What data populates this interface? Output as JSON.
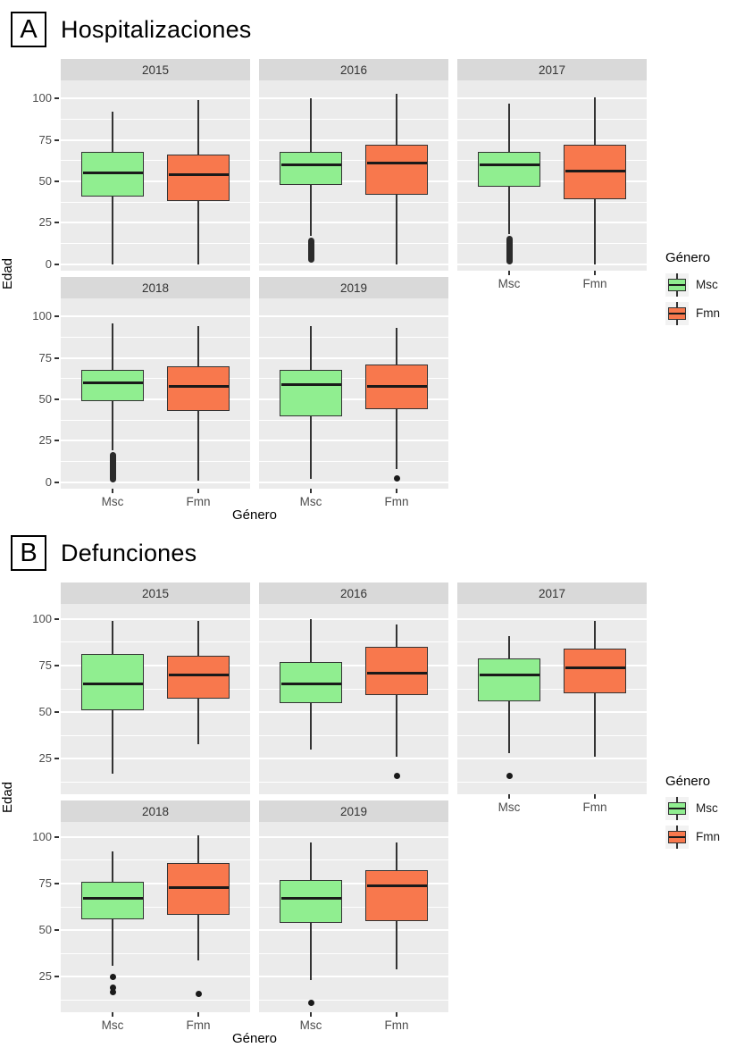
{
  "page": {
    "background": "#FFFFFF"
  },
  "chart_data": [
    {
      "type": "boxplot",
      "panel_tag": "A",
      "title": "Hospitalizaciones",
      "facet_variable": "year",
      "xlabel": "Género",
      "ylabel": "Edad",
      "categories": [
        "Msc",
        "Fmn"
      ],
      "colors": {
        "Msc": "#90EE90",
        "Fmn": "#F8784D",
        "stroke": "#333333",
        "median": "#1A1A1A"
      },
      "legend": {
        "title": "Género",
        "items": [
          "Msc",
          "Fmn"
        ],
        "position": "right"
      },
      "y_axis": {
        "ticks": [
          100,
          75,
          50,
          25,
          0
        ],
        "minor_ticks": [
          87.5,
          62.5,
          37.5,
          12.5
        ],
        "range": [
          -4,
          111
        ]
      },
      "facets": [
        {
          "label": "2015",
          "boxes": [
            {
              "group": "Msc",
              "whisker_low": 0,
              "q1": 41,
              "median": 55,
              "q3": 68,
              "whisker_high": 92,
              "outlier_stack": null,
              "outlier_points": []
            },
            {
              "group": "Fmn",
              "whisker_low": 0,
              "q1": 38,
              "median": 54,
              "q3": 66,
              "whisker_high": 99,
              "outlier_stack": null,
              "outlier_points": []
            }
          ]
        },
        {
          "label": "2016",
          "boxes": [
            {
              "group": "Msc",
              "whisker_low": 17,
              "q1": 48,
              "median": 60,
              "q3": 68,
              "whisker_high": 100,
              "outlier_stack": [
                1,
                16
              ],
              "outlier_points": []
            },
            {
              "group": "Fmn",
              "whisker_low": 0,
              "q1": 42,
              "median": 61,
              "q3": 72,
              "whisker_high": 103,
              "outlier_stack": null,
              "outlier_points": []
            }
          ]
        },
        {
          "label": "2017",
          "boxes": [
            {
              "group": "Msc",
              "whisker_low": 18,
              "q1": 47,
              "median": 60,
              "q3": 68,
              "whisker_high": 97,
              "outlier_stack": [
                0,
                17
              ],
              "outlier_points": []
            },
            {
              "group": "Fmn",
              "whisker_low": 0,
              "q1": 39,
              "median": 56,
              "q3": 72,
              "whisker_high": 101,
              "outlier_stack": null,
              "outlier_points": []
            }
          ]
        },
        {
          "label": "2018",
          "boxes": [
            {
              "group": "Msc",
              "whisker_low": 19,
              "q1": 49,
              "median": 60,
              "q3": 68,
              "whisker_high": 96,
              "outlier_stack": [
                0,
                18
              ],
              "outlier_points": []
            },
            {
              "group": "Fmn",
              "whisker_low": 1,
              "q1": 43,
              "median": 58,
              "q3": 70,
              "whisker_high": 94,
              "outlier_stack": null,
              "outlier_points": []
            }
          ]
        },
        {
          "label": "2019",
          "boxes": [
            {
              "group": "Msc",
              "whisker_low": 2,
              "q1": 40,
              "median": 59,
              "q3": 68,
              "whisker_high": 94,
              "outlier_stack": null,
              "outlier_points": []
            },
            {
              "group": "Fmn",
              "whisker_low": 8,
              "q1": 44,
              "median": 58,
              "q3": 71,
              "whisker_high": 93,
              "outlier_stack": null,
              "outlier_points": [
                2
              ]
            }
          ]
        }
      ]
    },
    {
      "type": "boxplot",
      "panel_tag": "B",
      "title": "Defunciones",
      "facet_variable": "year",
      "xlabel": "Género",
      "ylabel": "Edad",
      "categories": [
        "Msc",
        "Fmn"
      ],
      "colors": {
        "Msc": "#90EE90",
        "Fmn": "#F8784D",
        "stroke": "#333333",
        "median": "#1A1A1A"
      },
      "legend": {
        "title": "Género",
        "items": [
          "Msc",
          "Fmn"
        ],
        "position": "right"
      },
      "y_axis": {
        "ticks": [
          100,
          75,
          50,
          25
        ],
        "minor_ticks": [
          87.5,
          62.5,
          37.5,
          12.5
        ],
        "range": [
          6,
          108
        ]
      },
      "facets": [
        {
          "label": "2015",
          "boxes": [
            {
              "group": "Msc",
              "whisker_low": 17,
              "q1": 51,
              "median": 65,
              "q3": 81,
              "whisker_high": 99,
              "outlier_stack": null,
              "outlier_points": []
            },
            {
              "group": "Fmn",
              "whisker_low": 33,
              "q1": 57,
              "median": 70,
              "q3": 80,
              "whisker_high": 99,
              "outlier_stack": null,
              "outlier_points": []
            }
          ]
        },
        {
          "label": "2016",
          "boxes": [
            {
              "group": "Msc",
              "whisker_low": 30,
              "q1": 55,
              "median": 65,
              "q3": 77,
              "whisker_high": 100,
              "outlier_stack": null,
              "outlier_points": []
            },
            {
              "group": "Fmn",
              "whisker_low": 26,
              "q1": 59,
              "median": 71,
              "q3": 85,
              "whisker_high": 97,
              "outlier_stack": null,
              "outlier_points": [
                16
              ]
            }
          ]
        },
        {
          "label": "2017",
          "boxes": [
            {
              "group": "Msc",
              "whisker_low": 28,
              "q1": 56,
              "median": 70,
              "q3": 79,
              "whisker_high": 91,
              "outlier_stack": null,
              "outlier_points": [
                16
              ]
            },
            {
              "group": "Fmn",
              "whisker_low": 26,
              "q1": 60,
              "median": 74,
              "q3": 84,
              "whisker_high": 99,
              "outlier_stack": null,
              "outlier_points": []
            }
          ]
        },
        {
          "label": "2018",
          "boxes": [
            {
              "group": "Msc",
              "whisker_low": 31,
              "q1": 56,
              "median": 67,
              "q3": 76,
              "whisker_high": 92,
              "outlier_stack": null,
              "outlier_points": [
                25,
                19,
                17
              ]
            },
            {
              "group": "Fmn",
              "whisker_low": 34,
              "q1": 58,
              "median": 73,
              "q3": 86,
              "whisker_high": 101,
              "outlier_stack": null,
              "outlier_points": [
                16
              ]
            }
          ]
        },
        {
          "label": "2019",
          "boxes": [
            {
              "group": "Msc",
              "whisker_low": 23,
              "q1": 54,
              "median": 67,
              "q3": 77,
              "whisker_high": 97,
              "outlier_stack": null,
              "outlier_points": [
                11
              ]
            },
            {
              "group": "Fmn",
              "whisker_low": 29,
              "q1": 55,
              "median": 74,
              "q3": 82,
              "whisker_high": 97,
              "outlier_stack": null,
              "outlier_points": []
            }
          ]
        }
      ]
    }
  ]
}
